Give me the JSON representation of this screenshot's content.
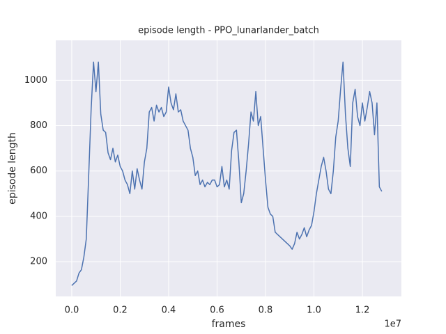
{
  "chart_data": {
    "type": "line",
    "title": "episode length - PPO_lunarlander_batch",
    "x_label": "frames",
    "y_label": "episode length",
    "x_offset_label": "1e7",
    "x": [
      0.0,
      0.01,
      0.02,
      0.03,
      0.04,
      0.05,
      0.06,
      0.07,
      0.08,
      0.09,
      0.1,
      0.11,
      0.12,
      0.13,
      0.14,
      0.15,
      0.16,
      0.17,
      0.18,
      0.19,
      0.2,
      0.21,
      0.22,
      0.23,
      0.24,
      0.25,
      0.26,
      0.27,
      0.28,
      0.29,
      0.3,
      0.31,
      0.32,
      0.33,
      0.34,
      0.35,
      0.36,
      0.37,
      0.38,
      0.39,
      0.4,
      0.41,
      0.42,
      0.43,
      0.44,
      0.45,
      0.46,
      0.47,
      0.48,
      0.49,
      0.5,
      0.51,
      0.52,
      0.53,
      0.54,
      0.55,
      0.56,
      0.57,
      0.58,
      0.59,
      0.6,
      0.61,
      0.62,
      0.63,
      0.64,
      0.65,
      0.66,
      0.67,
      0.68,
      0.69,
      0.7,
      0.71,
      0.72,
      0.73,
      0.74,
      0.75,
      0.76,
      0.77,
      0.78,
      0.79,
      0.8,
      0.81,
      0.82,
      0.83,
      0.84,
      0.85,
      0.86,
      0.87,
      0.88,
      0.89,
      0.9,
      0.91,
      0.92,
      0.93,
      0.94,
      0.95,
      0.96,
      0.97,
      0.98,
      0.99,
      1.0,
      1.01,
      1.02,
      1.03,
      1.04,
      1.05,
      1.06,
      1.07,
      1.08,
      1.09,
      1.1,
      1.11,
      1.12,
      1.13,
      1.14,
      1.15,
      1.16,
      1.17,
      1.18,
      1.19,
      1.2,
      1.21,
      1.22,
      1.23,
      1.24,
      1.25,
      1.26,
      1.27,
      1.28
    ],
    "series": [
      {
        "name": "episode length",
        "color": "#4c72b0",
        "values": [
          95,
          105,
          115,
          150,
          165,
          220,
          300,
          580,
          870,
          1080,
          950,
          1080,
          850,
          780,
          770,
          680,
          650,
          700,
          640,
          670,
          620,
          600,
          560,
          540,
          500,
          600,
          520,
          610,
          560,
          520,
          640,
          700,
          860,
          880,
          820,
          890,
          860,
          880,
          840,
          860,
          970,
          900,
          870,
          940,
          860,
          870,
          820,
          800,
          780,
          700,
          660,
          580,
          600,
          540,
          560,
          530,
          550,
          540,
          560,
          560,
          530,
          540,
          620,
          530,
          560,
          520,
          690,
          770,
          780,
          640,
          460,
          500,
          600,
          720,
          860,
          820,
          950,
          800,
          840,
          700,
          560,
          440,
          410,
          400,
          330,
          320,
          310,
          300,
          290,
          280,
          270,
          255,
          280,
          330,
          300,
          320,
          350,
          310,
          340,
          360,
          420,
          500,
          560,
          620,
          660,
          600,
          520,
          500,
          600,
          750,
          820,
          960,
          1080,
          850,
          700,
          620,
          900,
          960,
          840,
          800,
          900,
          820,
          880,
          950,
          900,
          760,
          900,
          530,
          510
        ]
      }
    ],
    "xlim": [
      -0.066,
      1.361
    ],
    "ylim": [
      47,
      1176
    ],
    "xticks": [
      {
        "value": 0,
        "label": "0.0"
      },
      0.2,
      0.4,
      0.6,
      0.8,
      {
        "value": 1,
        "label": "1.0"
      },
      1.2
    ],
    "yticks": [
      200,
      400,
      600,
      800,
      1000
    ],
    "grid": true
  }
}
